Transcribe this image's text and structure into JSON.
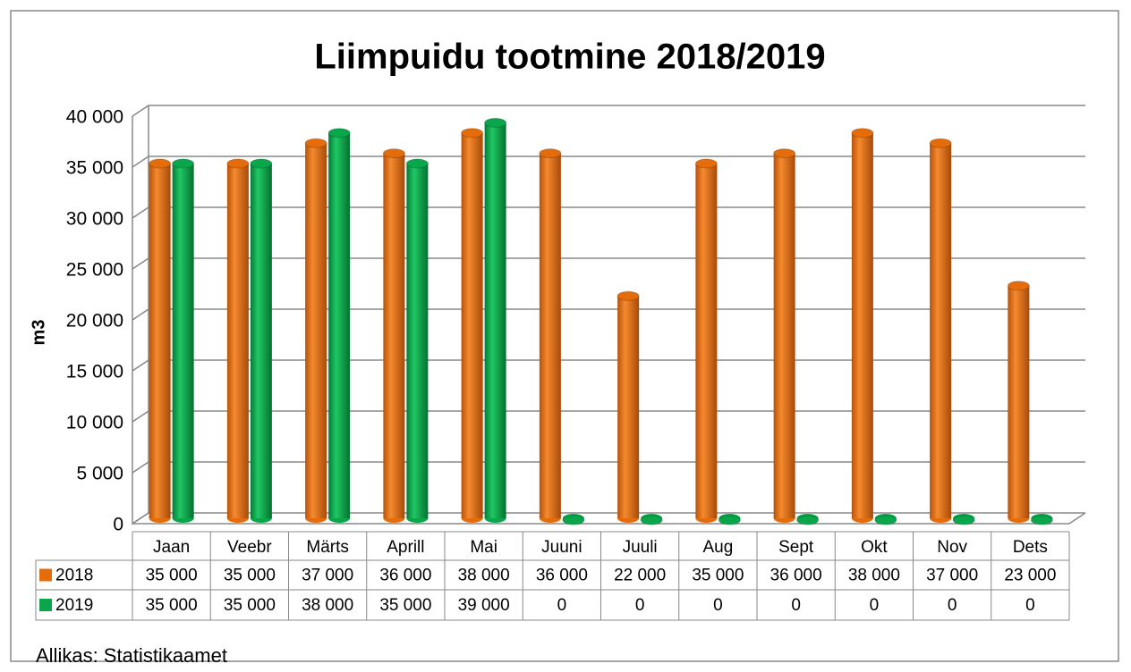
{
  "chart_data": {
    "type": "bar",
    "title": "Liimpuidu tootmine 2018/2019",
    "y_label": "m3",
    "source": "Allikas: Statistikaamet",
    "categories": [
      "Jaan",
      "Veebr",
      "Märts",
      "Aprill",
      "Mai",
      "Juuni",
      "Juuli",
      "Aug",
      "Sept",
      "Okt",
      "Nov",
      "Dets"
    ],
    "series": [
      {
        "name": "2018",
        "color": "#e46c0a",
        "values": [
          35000,
          35000,
          37000,
          36000,
          38000,
          36000,
          22000,
          35000,
          36000,
          38000,
          37000,
          23000
        ],
        "value_labels": [
          "35 000",
          "35 000",
          "37 000",
          "36 000",
          "38 000",
          "36 000",
          "22 000",
          "35 000",
          "36 000",
          "38 000",
          "37 000",
          "23 000"
        ]
      },
      {
        "name": "2019",
        "color": "#0aa64c",
        "values": [
          35000,
          35000,
          38000,
          35000,
          39000,
          0,
          0,
          0,
          0,
          0,
          0,
          0
        ],
        "value_labels": [
          "35 000",
          "35 000",
          "38 000",
          "35 000",
          "39 000",
          "0",
          "0",
          "0",
          "0",
          "0",
          "0",
          "0"
        ]
      }
    ],
    "ylim": [
      0,
      40000
    ],
    "yticks": [
      0,
      {
        "value": 5000,
        "label": "5 000"
      },
      {
        "value": 10000,
        "label": "10 000"
      },
      {
        "value": 15000,
        "label": "15 000"
      },
      {
        "value": 20000,
        "label": "20 000"
      },
      {
        "value": 25000,
        "label": "25 000"
      },
      {
        "value": 30000,
        "label": "30 000"
      },
      {
        "value": 35000,
        "label": "35 000"
      },
      {
        "value": 40000,
        "label": "40 000"
      }
    ],
    "grid": true
  }
}
